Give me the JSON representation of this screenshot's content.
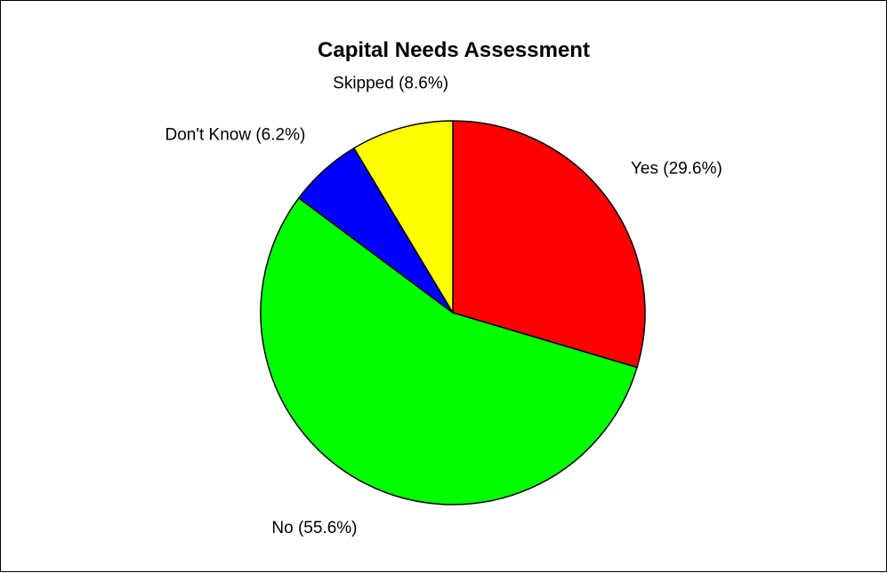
{
  "chart_data": {
    "type": "pie",
    "title": "Capital Needs Assessment",
    "start_angle_deg": 0,
    "direction": "clockwise",
    "slices": [
      {
        "label": "Yes (29.6%)",
        "name": "Yes",
        "value": 29.6,
        "color": "#ff0000"
      },
      {
        "label": "No (55.6%)",
        "name": "No",
        "value": 55.6,
        "color": "#00ff00"
      },
      {
        "label": "Don't Know (6.2%)",
        "name": "Don't Know",
        "value": 6.2,
        "color": "#0000ff"
      },
      {
        "label": "Skipped (8.6%)",
        "name": "Skipped",
        "value": 8.6,
        "color": "#ffff00"
      }
    ],
    "legend": "none",
    "grid": false
  }
}
